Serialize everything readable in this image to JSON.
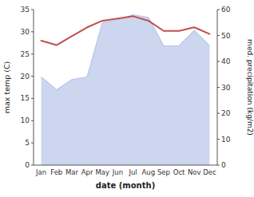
{
  "chart_data": {
    "type": "line",
    "xlabel": "date (month)",
    "ylabel": "max temp (C)",
    "y2label": "med. precipitation (kg/m2)",
    "categories": [
      "Jan",
      "Feb",
      "Mar",
      "Apr",
      "May",
      "Jun",
      "Jul",
      "Aug",
      "Sep",
      "Oct",
      "Nov",
      "Dec"
    ],
    "series": [
      {
        "type": "line",
        "color": "#c0504d",
        "values": [
          28.0,
          27.0,
          29.0,
          31.0,
          32.5,
          33.0,
          33.5,
          32.5,
          30.2,
          30.2,
          31.0,
          29.5
        ]
      },
      {
        "type": "area",
        "axis": "y2",
        "color": "#b8c4e8",
        "values": [
          34,
          29,
          33,
          34,
          55,
          56,
          58,
          57,
          46,
          46,
          52,
          46
        ]
      }
    ],
    "ylim": [
      0,
      35
    ],
    "yticks": [
      0,
      5,
      10,
      15,
      20,
      25,
      30,
      35
    ],
    "y2lim": [
      0,
      60
    ],
    "y2ticks": [
      0,
      10,
      20,
      30,
      40,
      50,
      60
    ],
    "grid": false
  }
}
